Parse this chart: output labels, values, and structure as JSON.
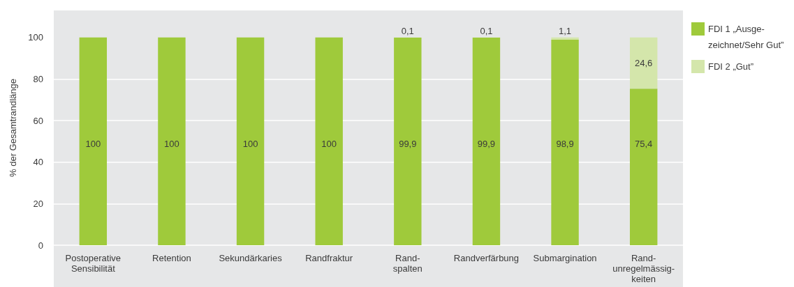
{
  "chart_data": {
    "type": "bar",
    "stacked": true,
    "ylabel": "% der Gesamtrandlänge",
    "categories": [
      "Postoperative\nSensibilität",
      "Retention",
      "Sekundärkaries",
      "Randfraktur",
      "Rand-\nspalten",
      "Randverfärbung",
      "Submargination",
      "Rand-\nunregelmässig-\nkeiten"
    ],
    "series": [
      {
        "name": "FDI 1 „Ausge-\nzeichnet/Sehr Gut”",
        "color": "#9fca3b",
        "values": [
          100,
          100,
          100,
          100,
          99.9,
          99.9,
          98.9,
          75.4
        ],
        "value_labels": [
          "100",
          "100",
          "100",
          "100",
          "99,9",
          "99,9",
          "98,9",
          "75,4"
        ]
      },
      {
        "name": "FDI 2 „Gut”",
        "color": "#d4e6ab",
        "values": [
          null,
          null,
          null,
          null,
          0.1,
          0.1,
          1.1,
          24.6
        ],
        "value_labels": [
          null,
          null,
          null,
          null,
          "0,1",
          "0,1",
          "1,1",
          "24,6"
        ]
      }
    ],
    "ylim": [
      0,
      113
    ],
    "yticks": [
      0,
      20,
      40,
      60,
      80,
      100
    ],
    "grid": "y",
    "legend": "right"
  }
}
